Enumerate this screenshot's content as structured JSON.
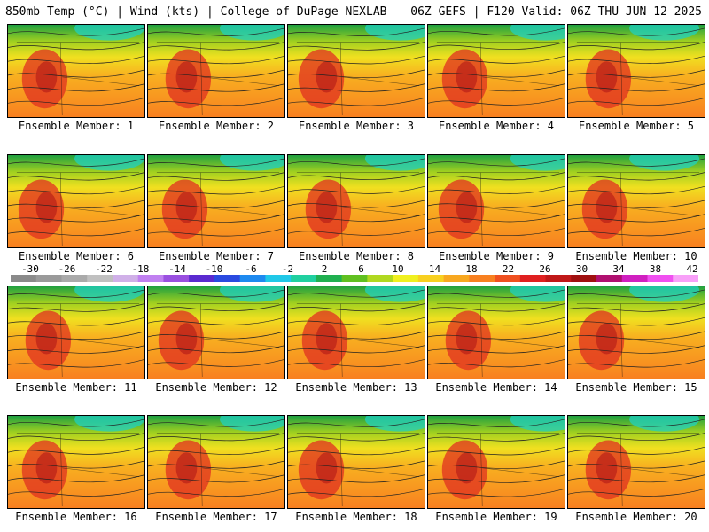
{
  "header": {
    "left_title": "850mb Temp (°C) | Wind (kts) | College of DuPage NEXLAB",
    "right_title": "06Z GEFS | F120 Valid: 06Z THU JUN 12 2025"
  },
  "panels": [
    {
      "label": "Ensemble Member: 1"
    },
    {
      "label": "Ensemble Member: 2"
    },
    {
      "label": "Ensemble Member: 3"
    },
    {
      "label": "Ensemble Member: 4"
    },
    {
      "label": "Ensemble Member: 5"
    },
    {
      "label": "Ensemble Member: 6"
    },
    {
      "label": "Ensemble Member: 7"
    },
    {
      "label": "Ensemble Member: 8"
    },
    {
      "label": "Ensemble Member: 9"
    },
    {
      "label": "Ensemble Member: 10"
    },
    {
      "label": "Ensemble Member: 11"
    },
    {
      "label": "Ensemble Member: 12"
    },
    {
      "label": "Ensemble Member: 13"
    },
    {
      "label": "Ensemble Member: 14"
    },
    {
      "label": "Ensemble Member: 15"
    },
    {
      "label": "Ensemble Member: 16"
    },
    {
      "label": "Ensemble Member: 17"
    },
    {
      "label": "Ensemble Member: 18"
    },
    {
      "label": "Ensemble Member: 19"
    },
    {
      "label": "Ensemble Member: 20"
    }
  ],
  "colorbar": {
    "ticks": [
      "-30",
      "-26",
      "-22",
      "-18",
      "-14",
      "-10",
      "-6",
      "-2",
      "2",
      "6",
      "10",
      "14",
      "18",
      "22",
      "26",
      "30",
      "34",
      "38",
      "42"
    ],
    "colors": [
      "#8a8a8a",
      "#9a9a9a",
      "#aaaaaa",
      "#c0c0c0",
      "#d0b0e8",
      "#c080f0",
      "#9a50e0",
      "#5a2ad0",
      "#2a4ae0",
      "#1e8af0",
      "#20c8e8",
      "#20d0a0",
      "#20b050",
      "#60c020",
      "#b0d820",
      "#f0f020",
      "#f8d020",
      "#f8a820",
      "#f88020",
      "#f05020",
      "#e02020",
      "#c01818",
      "#a01010",
      "#b01070",
      "#d020c0",
      "#f050f0",
      "#f8a0f8"
    ]
  }
}
